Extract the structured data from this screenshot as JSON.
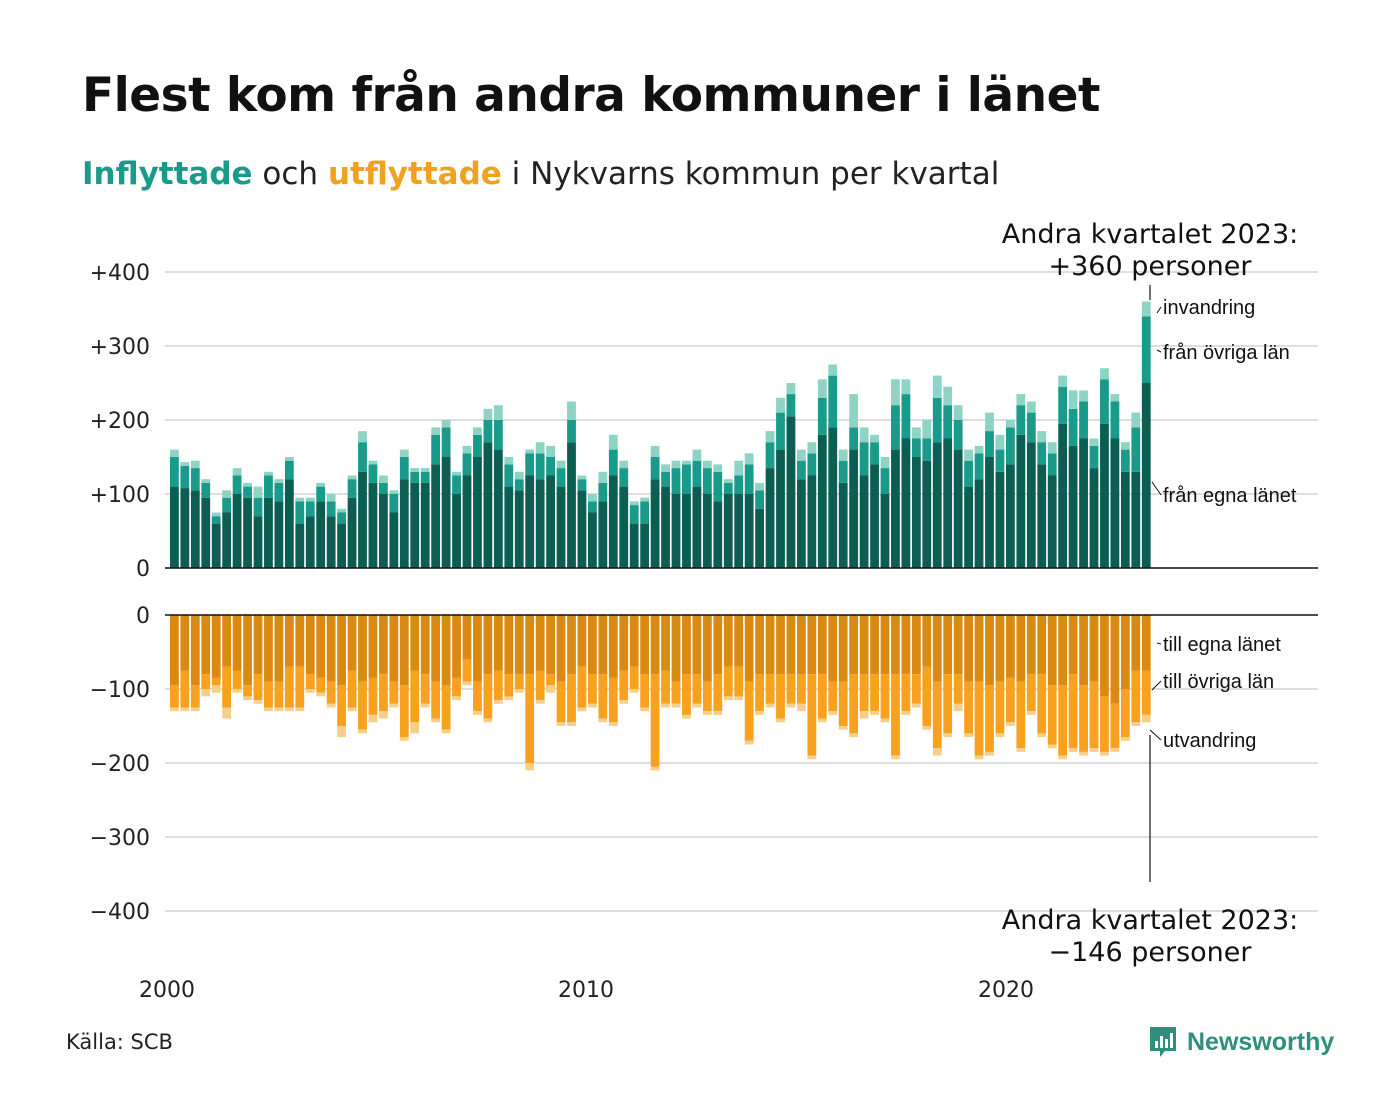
{
  "title": "Flest kom från andra kommuner i länet",
  "subtitle": {
    "part1": "Inflyttade",
    "part2": " och ",
    "part3": "utflyttade",
    "part4": " i Nykvarns kommun per kvartal"
  },
  "source": "Källa: SCB",
  "logo_text": "Newsworthy",
  "colors": {
    "in_egna": "#0d5e52",
    "in_ovriga": "#1a9a8a",
    "in_invandring": "#8fd3c5",
    "out_egna": "#d98a12",
    "out_ovriga": "#f7a11f",
    "out_utvandring": "#f8cf8a",
    "logo": "#2e8f7c"
  },
  "annotations": {
    "top_line1": "Andra kvartalet 2023:",
    "top_line2": "+360 personer",
    "bottom_line1": "Andra kvartalet 2023:",
    "bottom_line2": "−146 personer",
    "invandring": "invandring",
    "fran_ovriga": "från övriga län",
    "fran_egna": "från egna länet",
    "till_egna": "till egna länet",
    "till_ovriga": "till övriga län",
    "utvandring": "utvandring"
  },
  "chart_data": {
    "type": "bar",
    "x_start": "2000 Q1",
    "x_ticks": [
      "2000",
      "2010",
      "2020"
    ],
    "top_ylim": [
      0,
      400
    ],
    "top_ticks": [
      "+400",
      "+300",
      "+200",
      "+100",
      "0"
    ],
    "bottom_ylim": [
      -400,
      0
    ],
    "bottom_ticks": [
      "0",
      "−100",
      "−200",
      "−300",
      "−400"
    ],
    "inflow": {
      "fran_egna_lanet": [
        110,
        108,
        105,
        95,
        60,
        75,
        100,
        95,
        70,
        95,
        90,
        120,
        60,
        70,
        90,
        70,
        60,
        95,
        130,
        115,
        100,
        75,
        120,
        115,
        115,
        140,
        150,
        100,
        125,
        150,
        170,
        160,
        110,
        105,
        125,
        120,
        125,
        110,
        170,
        105,
        75,
        90,
        125,
        110,
        60,
        60,
        120,
        110,
        100,
        100,
        110,
        100,
        90,
        100,
        100,
        100,
        80,
        135,
        160,
        205,
        120,
        125,
        180,
        190,
        115,
        160,
        125,
        140,
        100,
        160,
        175,
        150,
        145,
        170,
        175,
        160,
        110,
        120,
        150,
        130,
        140,
        180,
        170,
        140,
        125,
        195,
        165,
        175,
        135,
        195,
        175,
        130,
        130,
        250
      ],
      "fran_ovriga_lan": [
        40,
        30,
        30,
        20,
        10,
        20,
        25,
        15,
        25,
        30,
        25,
        25,
        30,
        20,
        20,
        20,
        15,
        25,
        40,
        25,
        15,
        25,
        30,
        15,
        15,
        40,
        40,
        25,
        30,
        30,
        30,
        40,
        30,
        15,
        30,
        35,
        25,
        25,
        30,
        15,
        15,
        25,
        35,
        25,
        25,
        30,
        30,
        20,
        35,
        40,
        35,
        35,
        40,
        15,
        25,
        40,
        25,
        35,
        50,
        30,
        25,
        30,
        50,
        70,
        30,
        30,
        45,
        30,
        35,
        60,
        60,
        25,
        30,
        60,
        45,
        40,
        35,
        35,
        35,
        30,
        50,
        40,
        40,
        30,
        30,
        50,
        50,
        50,
        30,
        60,
        50,
        30,
        60,
        90
      ],
      "invandring": [
        10,
        5,
        10,
        5,
        5,
        10,
        10,
        5,
        15,
        5,
        5,
        5,
        5,
        5,
        5,
        10,
        5,
        5,
        15,
        5,
        10,
        5,
        10,
        5,
        5,
        10,
        10,
        5,
        10,
        10,
        15,
        20,
        10,
        10,
        5,
        15,
        15,
        10,
        25,
        5,
        10,
        15,
        20,
        10,
        5,
        5,
        15,
        10,
        10,
        5,
        15,
        10,
        10,
        5,
        20,
        15,
        10,
        15,
        20,
        15,
        15,
        15,
        25,
        15,
        15,
        45,
        20,
        10,
        15,
        35,
        20,
        15,
        25,
        30,
        25,
        20,
        15,
        10,
        25,
        20,
        10,
        15,
        15,
        15,
        15,
        15,
        25,
        15,
        10,
        15,
        10,
        10,
        20,
        20
      ]
    },
    "outflow": {
      "till_egna_lanet": [
        95,
        75,
        95,
        80,
        85,
        70,
        75,
        95,
        80,
        90,
        90,
        70,
        70,
        80,
        85,
        90,
        95,
        75,
        90,
        85,
        80,
        90,
        95,
        75,
        80,
        90,
        95,
        85,
        60,
        90,
        80,
        75,
        80,
        80,
        80,
        75,
        80,
        90,
        80,
        70,
        80,
        80,
        85,
        75,
        70,
        80,
        80,
        75,
        90,
        80,
        80,
        90,
        80,
        70,
        70,
        90,
        80,
        80,
        80,
        80,
        80,
        80,
        80,
        90,
        90,
        80,
        80,
        80,
        80,
        80,
        80,
        80,
        70,
        90,
        80,
        80,
        90,
        90,
        95,
        90,
        85,
        90,
        80,
        80,
        95,
        95,
        80,
        95,
        90,
        110,
        120,
        100,
        75,
        75
      ],
      "till_ovriga_lan": [
        30,
        50,
        30,
        20,
        10,
        55,
        25,
        15,
        35,
        35,
        35,
        55,
        55,
        20,
        20,
        30,
        55,
        50,
        65,
        50,
        50,
        30,
        70,
        70,
        40,
        50,
        60,
        25,
        30,
        40,
        60,
        40,
        30,
        20,
        120,
        40,
        15,
        55,
        65,
        55,
        40,
        60,
        60,
        40,
        30,
        45,
        125,
        45,
        30,
        55,
        40,
        40,
        50,
        40,
        40,
        80,
        50,
        40,
        60,
        40,
        40,
        110,
        60,
        40,
        60,
        80,
        50,
        50,
        60,
        110,
        50,
        40,
        80,
        90,
        80,
        40,
        70,
        100,
        90,
        70,
        60,
        90,
        50,
        80,
        80,
        95,
        100,
        90,
        90,
        75,
        60,
        65,
        70,
        60
      ],
      "utvandring": [
        5,
        5,
        5,
        10,
        10,
        15,
        5,
        5,
        5,
        5,
        5,
        5,
        5,
        5,
        5,
        5,
        15,
        5,
        5,
        10,
        10,
        5,
        5,
        15,
        5,
        5,
        5,
        5,
        5,
        5,
        5,
        5,
        5,
        5,
        10,
        5,
        10,
        5,
        5,
        5,
        5,
        5,
        5,
        5,
        5,
        5,
        5,
        5,
        5,
        5,
        5,
        5,
        5,
        5,
        5,
        5,
        5,
        5,
        5,
        5,
        10,
        5,
        5,
        5,
        5,
        5,
        10,
        5,
        5,
        5,
        5,
        5,
        5,
        10,
        5,
        10,
        5,
        5,
        5,
        5,
        5,
        5,
        5,
        5,
        5,
        5,
        5,
        5,
        5,
        5,
        5,
        5,
        5,
        10
      ]
    }
  }
}
